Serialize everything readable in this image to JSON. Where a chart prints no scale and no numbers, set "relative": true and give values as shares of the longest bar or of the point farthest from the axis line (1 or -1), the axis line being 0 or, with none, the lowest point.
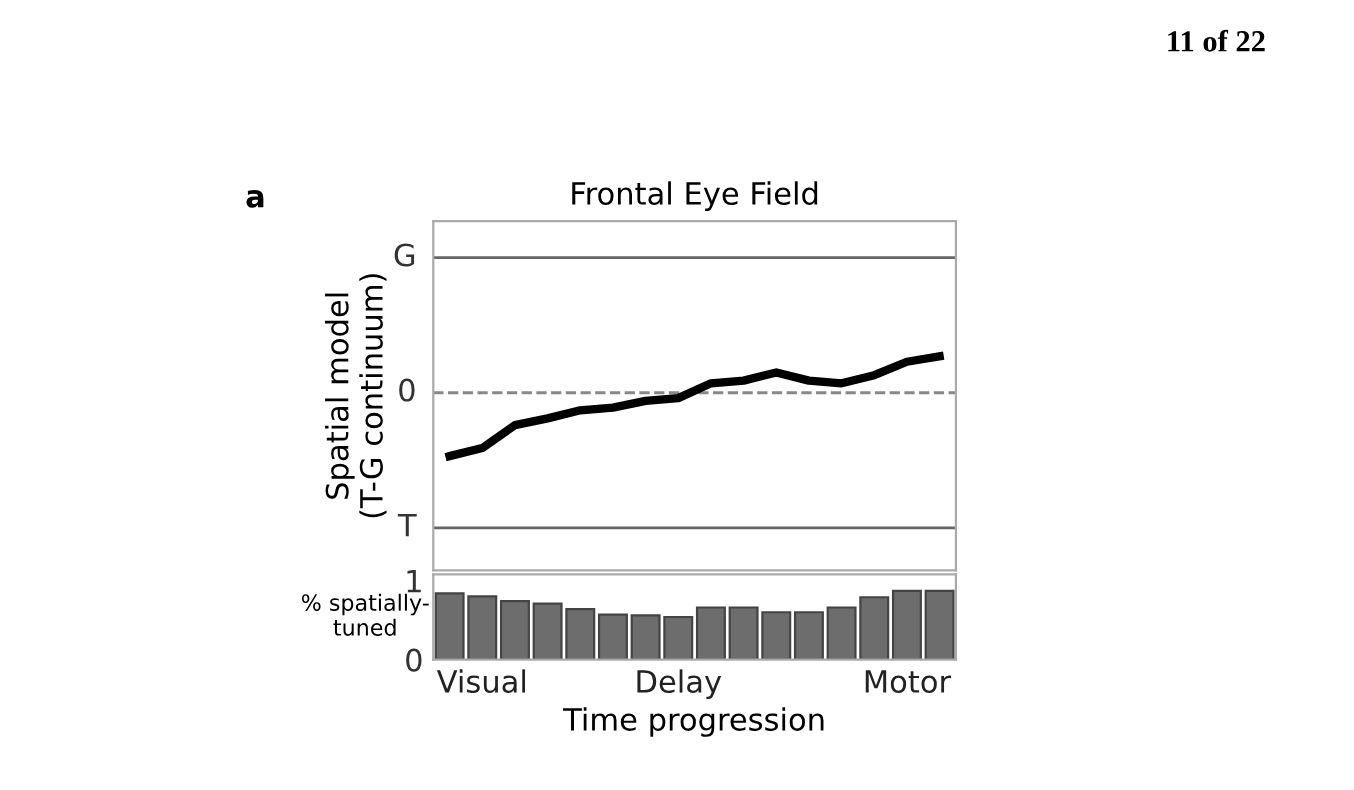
{
  "chart_data": [
    {
      "type": "line",
      "title": "Frontal Eye Field",
      "ylabel": "Spatial model\n(T-G continuum)",
      "annotations": [
        "a",
        "11 of 22"
      ],
      "relative": true,
      "categories": [
        null,
        null,
        null,
        null,
        null,
        null,
        null,
        null,
        null,
        null,
        null,
        null,
        null,
        null,
        null,
        null
      ],
      "series": [
        {
          "color": "#000000",
          "values": [
            -1,
            -0.872,
            -0.511,
            -0.404,
            -0.277,
            -0.234,
            -0.128,
            -0.085,
            0.149,
            0.191,
            0.319,
            0.191,
            0.149,
            0.277,
            0.489,
            0.574
          ]
        }
      ],
      "ref_lines": [
        {
          "axis": "y",
          "value": 2.13,
          "label": "G",
          "color": "#666666",
          "line_style": "solid"
        },
        {
          "axis": "y",
          "value": 0,
          "label": "0",
          "color": "#888888",
          "line_style": "dashed"
        },
        {
          "axis": "y",
          "value": -2.13,
          "label": "T",
          "color": "#666666",
          "line_style": "solid"
        }
      ],
      "grid": false,
      "marker": "none",
      "line_style": "solid"
    },
    {
      "type": "bar",
      "ylabel": "% spatially-\ntuned",
      "xlabel": "Time progression",
      "categories": [
        null,
        "Visual",
        null,
        null,
        null,
        null,
        null,
        "Delay",
        null,
        null,
        null,
        null,
        null,
        null,
        "Motor",
        null
      ],
      "ylim": [
        0,
        1.08
      ],
      "yticks": [
        0,
        1
      ],
      "series": [
        {
          "color": "#6d6d6d",
          "values": [
            0.84,
            0.8,
            0.74,
            0.71,
            0.64,
            0.57,
            0.56,
            0.54,
            0.66,
            0.66,
            0.6,
            0.6,
            0.66,
            0.79,
            0.87,
            0.87
          ]
        }
      ],
      "grid": false
    }
  ]
}
